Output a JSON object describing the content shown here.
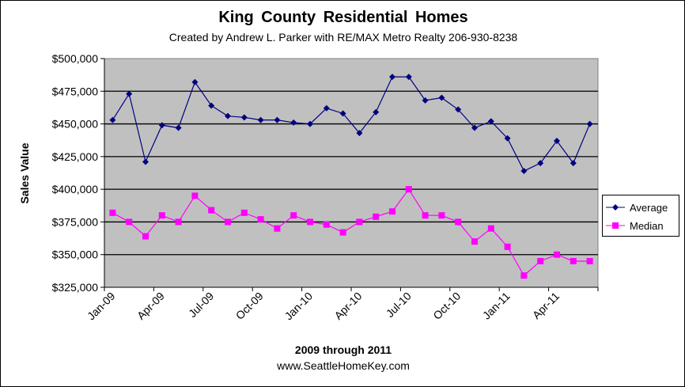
{
  "chart_data": {
    "type": "line",
    "title": "King County Residential Homes",
    "subtitle": "Created by Andrew L. Parker with RE/MAX Metro Realty 206-930-8238",
    "xlabel": "2009 through 2011",
    "footer": "www.SeattleHomeKey.com",
    "ylabel": "Sales Value",
    "ylim": [
      325000,
      500000
    ],
    "ytick_labels": [
      "$325,000",
      "$350,000",
      "$375,000",
      "$400,000",
      "$425,000",
      "$450,000",
      "$475,000",
      "$500,000"
    ],
    "yticks": [
      325000,
      350000,
      375000,
      400000,
      425000,
      450000,
      475000,
      500000
    ],
    "xtick_labels": [
      "Jan-09",
      "Apr-09",
      "Jul-09",
      "Oct-09",
      "Jan-10",
      "Apr-10",
      "Jul-10",
      "Oct-10",
      "Jan-11",
      "Apr-11"
    ],
    "x": [
      "Jan-09",
      "Feb-09",
      "Mar-09",
      "Apr-09",
      "May-09",
      "Jun-09",
      "Jul-09",
      "Aug-09",
      "Sep-09",
      "Oct-09",
      "Nov-09",
      "Dec-09",
      "Jan-10",
      "Feb-10",
      "Mar-10",
      "Apr-10",
      "May-10",
      "Jun-10",
      "Jul-10",
      "Aug-10",
      "Sep-10",
      "Oct-10",
      "Nov-10",
      "Dec-10",
      "Jan-11",
      "Feb-11",
      "Mar-11",
      "Apr-11",
      "May-11",
      "Jun-11"
    ],
    "grid": true,
    "legend_position": "right",
    "plot_background": "#c0c0c0",
    "series": [
      {
        "name": "Average",
        "color": "#000080",
        "marker": "diamond",
        "values": [
          453000,
          473000,
          421000,
          449000,
          447000,
          482000,
          464000,
          456000,
          455000,
          453000,
          453000,
          451000,
          450000,
          462000,
          458000,
          443000,
          459000,
          486000,
          486000,
          468000,
          470000,
          461000,
          447000,
          452000,
          439000,
          414000,
          420000,
          437000,
          420000,
          450000
        ]
      },
      {
        "name": "Median",
        "color": "#ff00ff",
        "marker": "square",
        "values": [
          382000,
          375000,
          364000,
          380000,
          375000,
          395000,
          384000,
          375000,
          382000,
          377000,
          370000,
          380000,
          375000,
          373000,
          367000,
          375000,
          379000,
          383000,
          400000,
          380000,
          380000,
          375000,
          360000,
          370000,
          356000,
          334000,
          345000,
          350000,
          345000,
          345000
        ]
      }
    ]
  }
}
